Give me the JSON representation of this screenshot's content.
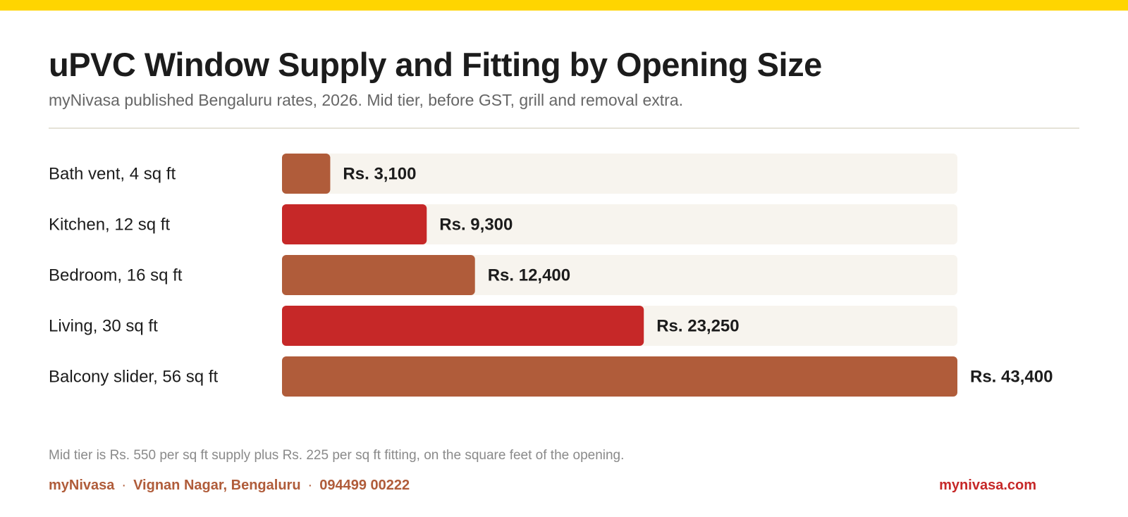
{
  "header": {
    "title": "uPVC Window Supply and Fitting by Opening Size",
    "subtitle": "myNivasa published Bengaluru rates, 2026. Mid tier, before GST, grill and removal extra."
  },
  "chart_data": {
    "type": "bar",
    "orientation": "horizontal",
    "categories": [
      "Bath vent, 4 sq ft",
      "Kitchen, 12 sq ft",
      "Bedroom, 16 sq ft",
      "Living, 30 sq ft",
      "Balcony slider, 56 sq ft"
    ],
    "values": [
      3100,
      9300,
      12400,
      23250,
      43400
    ],
    "value_labels": [
      "Rs. 3,100",
      "Rs. 9,300",
      "Rs. 12,400",
      "Rs. 23,250",
      "Rs. 43,400"
    ],
    "bar_colors": [
      "#B05C3A",
      "#C62828",
      "#B05C3A",
      "#C62828",
      "#B05C3A"
    ],
    "track_color": "#F7F4EE",
    "xlim": [
      0,
      43400
    ],
    "title": "uPVC Window Supply and Fitting by Opening Size",
    "xlabel": "",
    "ylabel": "",
    "grid": false,
    "legend": "none"
  },
  "footer": {
    "note": "Mid tier is Rs. 550 per sq ft supply plus Rs. 225 per sq ft fitting, on the square feet of the opening.",
    "brand": "myNivasa",
    "location": "Vignan Nagar, Bengaluru",
    "phone": "094499 00222",
    "separator": "·",
    "website": "mynivasa.com"
  },
  "colors": {
    "accent_yellow": "#FFD500",
    "brand_brown": "#B05C3A",
    "brand_red": "#C62828"
  }
}
